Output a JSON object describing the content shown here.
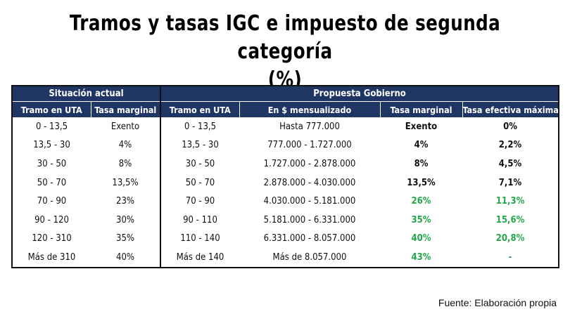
{
  "title": {
    "line1": "Tramos y tasas IGC e impuesto de segunda categoría",
    "line2": "(%)"
  },
  "table": {
    "group_headers": {
      "current": "Situación actual",
      "proposal": "Propuesta Gobierno"
    },
    "columns": [
      "Tramo en UTA",
      "Tasa marginal",
      "Tramo en UTA",
      "En $ mensualizado",
      "Tasa marginal",
      "Tasa efectiva máxima"
    ],
    "rows": [
      [
        "0 - 13,5",
        "Exento",
        "0 - 13,5",
        "Hasta 777.000",
        "Exento",
        "0%"
      ],
      [
        "13,5 - 30",
        "4%",
        "13,5 - 30",
        "777.000 - 1.727.000",
        "4%",
        "2,2%"
      ],
      [
        "30 - 50",
        "8%",
        "30 - 50",
        "1.727.000 - 2.878.000",
        "8%",
        "4,5%"
      ],
      [
        "50 - 70",
        "13,5%",
        "50 - 70",
        "2.878.000 - 4.030.000",
        "13,5%",
        "7,1%"
      ],
      [
        "70 - 90",
        "23%",
        "70 - 90",
        "4.030.000 - 5.181.000",
        "26%",
        "11,3%"
      ],
      [
        "90 - 120",
        "30%",
        "90 - 110",
        "5.181.000 - 6.331.000",
        "35%",
        "15,6%"
      ],
      [
        "120 - 310",
        "35%",
        "110 - 140",
        "6.331.000 - 8.057.000",
        "40%",
        "20,8%"
      ],
      [
        "Más de 310",
        "40%",
        "Más de 140",
        "Más de 8.057.000",
        "43%",
        "-"
      ]
    ]
  },
  "highlight_color": "#22a84a",
  "header_color": "#1f3664",
  "source": "Fuente: Elaboración propia"
}
